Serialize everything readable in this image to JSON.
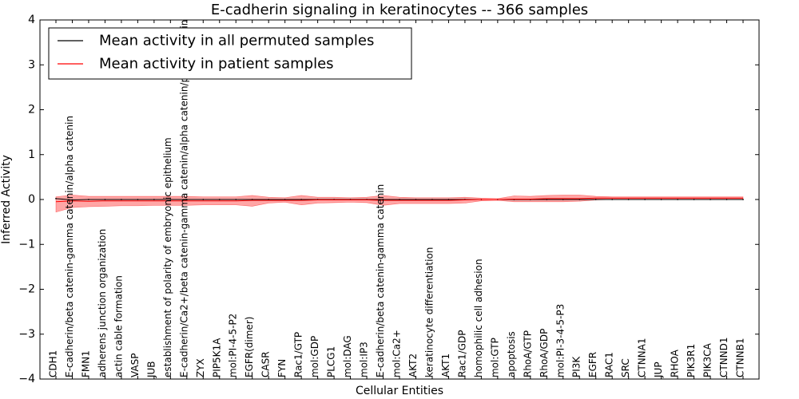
{
  "chart_data": {
    "type": "line",
    "title": "E-cadherin signaling in keratinocytes -- 366 samples",
    "xlabel": "Cellular Entities",
    "ylabel": "Inferred Activity",
    "ylim": [
      -4,
      4
    ],
    "yticks": [
      "4",
      "3",
      "2",
      "1",
      "0",
      "−1",
      "−2",
      "−3",
      "−4"
    ],
    "grid": false,
    "legend_position": "top-left",
    "categories": [
      "CDH1",
      "E-cadherin/beta catenin-gamma catenin/alpha catenin",
      "FMN1",
      "adherens junction organization",
      "actin cable formation",
      "VASP",
      "JUB",
      "establishment of polarity of embryonic epithelium",
      "E-cadherin/Ca2+/beta catenin-gamma catenin/alpha catenin/p120 catenin",
      "ZYX",
      "PIP5K1A",
      "mol:PI-4-5-P2",
      "EGFR(dimer)",
      "CASR",
      "FYN",
      "Rac1/GTP",
      "mol:GDP",
      "PLCG1",
      "mol:DAG",
      "mol:IP3",
      "E-cadherin/beta catenin-gamma catenin",
      "mol:Ca2+",
      "AKT2",
      "keratinocyte differentiation",
      "AKT1",
      "Rac1/GDP",
      "homophilic cell adhesion",
      "mol:GTP",
      "apoptosis",
      "RhoA/GTP",
      "RhoA/GDP",
      "mol:PI-3-4-5-P3",
      "PI3K",
      "EGFR",
      "RAC1",
      "SRC",
      "CTNNA1",
      "JUP",
      "RHOA",
      "PIK3R1",
      "PIK3CA",
      "CTNND1",
      "CTNNB1"
    ],
    "series": [
      {
        "name": "Mean activity in all permuted samples",
        "color": "#000000",
        "values": [
          0.02,
          -0.01,
          0,
          0,
          0,
          0,
          0,
          0,
          0,
          0,
          0,
          0,
          0,
          0,
          0,
          0,
          0,
          0,
          0,
          0,
          0,
          0,
          0,
          0,
          0,
          0,
          0,
          0,
          0,
          0,
          0,
          0,
          0,
          0,
          0,
          0,
          0,
          0,
          0,
          0,
          0,
          0,
          0
        ]
      },
      {
        "name": "Mean activity in patient samples",
        "color": "#ff0000",
        "values": [
          -0.05,
          -0.03,
          -0.04,
          -0.03,
          -0.03,
          -0.03,
          -0.03,
          -0.03,
          -0.03,
          -0.03,
          -0.03,
          -0.03,
          -0.02,
          -0.02,
          -0.02,
          -0.02,
          -0.01,
          -0.01,
          -0.01,
          -0.01,
          -0.02,
          -0.02,
          -0.02,
          -0.02,
          -0.02,
          -0.01,
          0,
          0,
          0.01,
          0.01,
          0.02,
          0.02,
          0.02,
          0.03,
          0.03,
          0.03,
          0.03,
          0.03,
          0.03,
          0.03,
          0.03,
          0.03,
          0.03
        ]
      }
    ],
    "band": {
      "color": "#ff0000",
      "upper": [
        0.06,
        0.1,
        0.07,
        0.07,
        0.07,
        0.07,
        0.07,
        0.07,
        0.07,
        0.06,
        0.06,
        0.06,
        0.09,
        0.05,
        0.04,
        0.09,
        0.05,
        0.05,
        0.04,
        0.05,
        0.09,
        0.05,
        0.04,
        0.04,
        0.04,
        0.05,
        0.03,
        0.02,
        0.08,
        0.07,
        0.09,
        0.1,
        0.1,
        0.07,
        0.06,
        0.06,
        0.06,
        0.06,
        0.06,
        0.06,
        0.06,
        0.06,
        0.06
      ],
      "lower": [
        -0.28,
        -0.18,
        -0.16,
        -0.15,
        -0.14,
        -0.14,
        -0.13,
        -0.13,
        -0.13,
        -0.12,
        -0.12,
        -0.12,
        -0.15,
        -0.08,
        -0.06,
        -0.12,
        -0.08,
        -0.07,
        -0.06,
        -0.07,
        -0.13,
        -0.09,
        -0.09,
        -0.09,
        -0.09,
        -0.08,
        -0.03,
        -0.02,
        -0.05,
        -0.05,
        -0.05,
        -0.05,
        -0.04,
        -0.01,
        0,
        0,
        0,
        0,
        0,
        0,
        0,
        0,
        0
      ]
    }
  }
}
